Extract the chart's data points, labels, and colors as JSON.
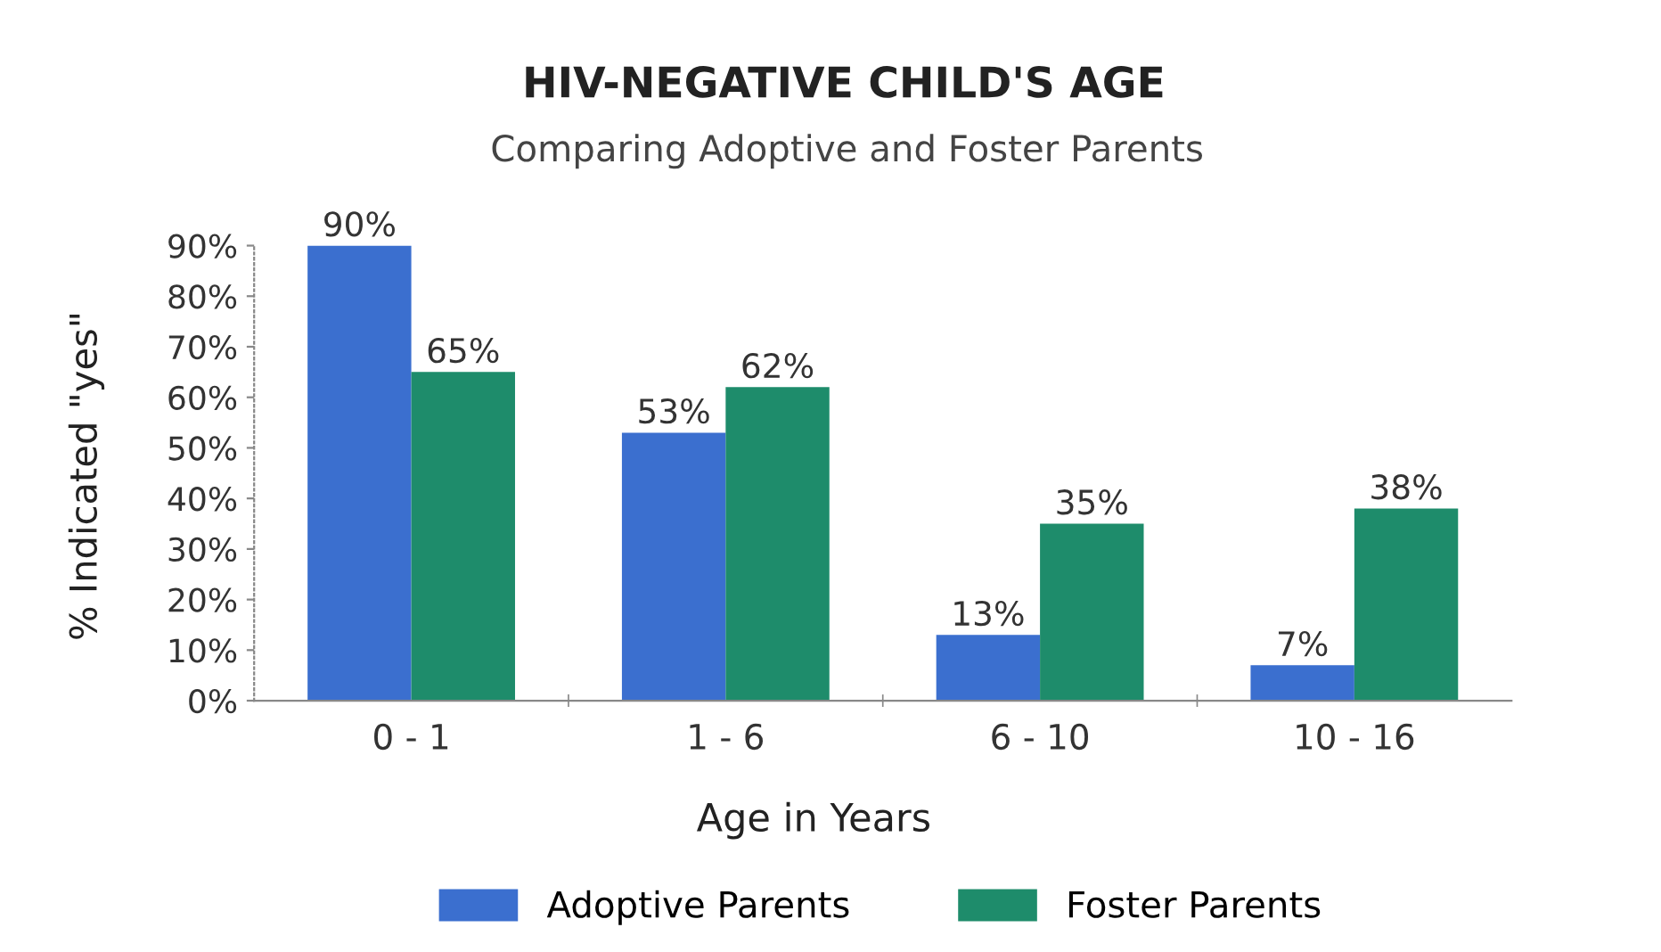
{
  "chart_data": {
    "type": "bar",
    "title": "HIV-NEGATIVE CHILD'S AGE",
    "subtitle": "Comparing Adoptive and Foster Parents",
    "xlabel": "Age in Years",
    "ylabel": "% Indicated \"yes\"",
    "categories": [
      "0 - 1",
      "1 - 6",
      "6 - 10",
      "10 - 16"
    ],
    "series": [
      {
        "name": "Adoptive Parents",
        "color": "#3b6fcf",
        "values": [
          90,
          53,
          13,
          7
        ],
        "value_labels": [
          "90%",
          "53%",
          "13%",
          "7%"
        ]
      },
      {
        "name": "Foster Parents",
        "color": "#1e8c6b",
        "values": [
          65,
          62,
          35,
          38
        ],
        "value_labels": [
          "65%",
          "62%",
          "35%",
          "38%"
        ]
      }
    ],
    "ylim": [
      0,
      90
    ],
    "yticks": [
      {
        "value": 0,
        "label": "0%"
      },
      {
        "value": 10,
        "label": "10%"
      },
      {
        "value": 20,
        "label": "20%"
      },
      {
        "value": 30,
        "label": "30%"
      },
      {
        "value": 40,
        "label": "40%"
      },
      {
        "value": 50,
        "label": "50%"
      },
      {
        "value": 60,
        "label": "60%"
      },
      {
        "value": 70,
        "label": "70%"
      },
      {
        "value": 80,
        "label": "80%"
      },
      {
        "value": 90,
        "label": "90%"
      }
    ],
    "grid": false,
    "legend": "bottom"
  }
}
